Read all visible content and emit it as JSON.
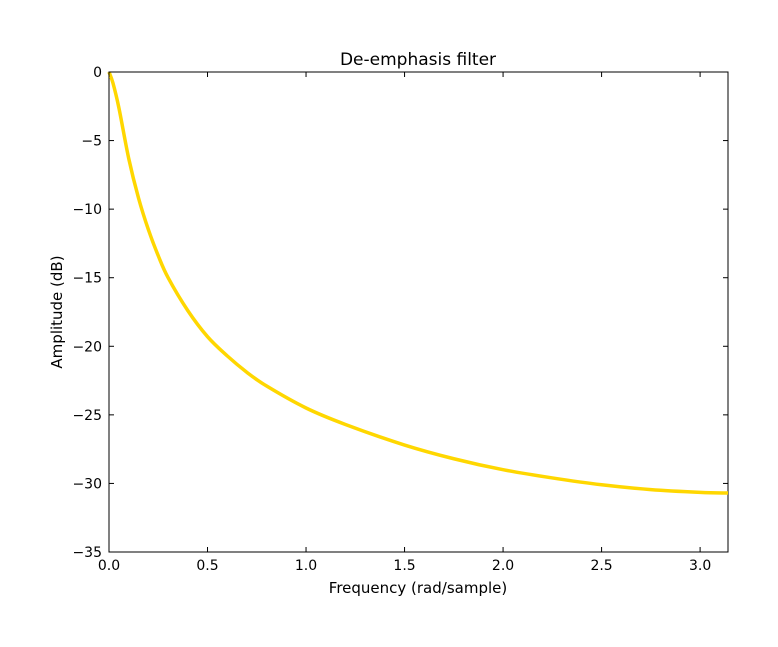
{
  "chart_data": {
    "type": "line",
    "title": "De-emphasis filter",
    "xlabel": "Frequency (rad/sample)",
    "ylabel": "Amplitude (dB)",
    "xlim": [
      0,
      3.14159
    ],
    "ylim": [
      -35,
      0
    ],
    "xticks": [
      {
        "value": 0.0,
        "label": "0.0"
      },
      {
        "value": 0.5,
        "label": "0.5"
      },
      {
        "value": 1.0,
        "label": "1.0"
      },
      {
        "value": 1.5,
        "label": "1.5"
      },
      {
        "value": 2.0,
        "label": "2.0"
      },
      {
        "value": 2.5,
        "label": "2.5"
      },
      {
        "value": 3.0,
        "label": "3.0"
      }
    ],
    "yticks": [
      {
        "value": 0,
        "label": "0"
      },
      {
        "value": -5,
        "label": "−5"
      },
      {
        "value": -10,
        "label": "−10"
      },
      {
        "value": -15,
        "label": "−15"
      },
      {
        "value": -20,
        "label": "−20"
      },
      {
        "value": -25,
        "label": "−25"
      },
      {
        "value": -30,
        "label": "−30"
      },
      {
        "value": -35,
        "label": "−35"
      }
    ],
    "grid": false,
    "legend": false,
    "series": [
      {
        "color": "#ffd700",
        "x": [
          0.0,
          0.02,
          0.05,
          0.1,
          0.15,
          0.2,
          0.25,
          0.3,
          0.4,
          0.5,
          0.6,
          0.7,
          0.8,
          1.0,
          1.2,
          1.5,
          1.75,
          2.0,
          2.25,
          2.5,
          2.75,
          3.0,
          3.14159
        ],
        "y": [
          0.0,
          -0.8,
          -2.6,
          -6.3,
          -9.2,
          -11.5,
          -13.4,
          -15.0,
          -17.4,
          -19.3,
          -20.7,
          -21.9,
          -22.9,
          -24.5,
          -25.7,
          -27.2,
          -28.2,
          -29.0,
          -29.6,
          -30.1,
          -30.45,
          -30.65,
          -30.7
        ]
      }
    ]
  }
}
